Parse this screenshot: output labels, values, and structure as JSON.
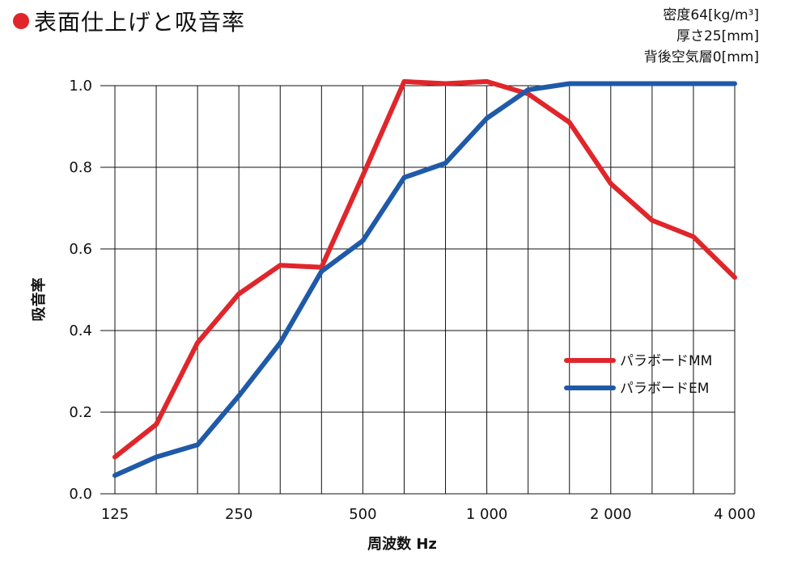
{
  "title": "表面仕上げと吸音率",
  "specs": [
    "密度64[kg/m³]",
    "厚さ25[mm]",
    "背後空気層0[mm]"
  ],
  "colors": {
    "accent": "#e0262b",
    "mm": "#e0262b",
    "em": "#1f5aa8",
    "grid": "#111111"
  },
  "chart_data": {
    "type": "line",
    "xlabel": "周波数 Hz",
    "ylabel": "吸音率",
    "x_scale": "log (1/3-octave bands)",
    "x": [
      125,
      160,
      200,
      250,
      315,
      400,
      500,
      630,
      800,
      1000,
      1250,
      1600,
      2000,
      2500,
      3150,
      4000
    ],
    "x_tick_labels": [
      {
        "x": 125,
        "label": "125"
      },
      {
        "x": 250,
        "label": "250"
      },
      {
        "x": 500,
        "label": "500"
      },
      {
        "x": 1000,
        "label": "1 000"
      },
      {
        "x": 2000,
        "label": "2 000"
      },
      {
        "x": 4000,
        "label": "4 000"
      }
    ],
    "ylim": [
      0,
      1.0
    ],
    "y_ticks": [
      "0.0",
      "0.2",
      "0.4",
      "0.6",
      "0.8",
      "1.0"
    ],
    "grid": true,
    "legend_position": "lower-right",
    "series": [
      {
        "name": "パラボードMM",
        "color": "#e0262b",
        "values": [
          0.09,
          0.17,
          0.37,
          0.49,
          0.56,
          0.555,
          0.78,
          1.01,
          1.005,
          1.01,
          0.98,
          0.91,
          0.76,
          0.67,
          0.63,
          0.53
        ]
      },
      {
        "name": "パラボードEM",
        "color": "#1f5aa8",
        "values": [
          0.045,
          0.09,
          0.12,
          0.24,
          0.37,
          0.545,
          0.62,
          0.775,
          0.81,
          0.92,
          0.99,
          1.005,
          1.005,
          1.005,
          1.005,
          1.005
        ]
      }
    ]
  }
}
